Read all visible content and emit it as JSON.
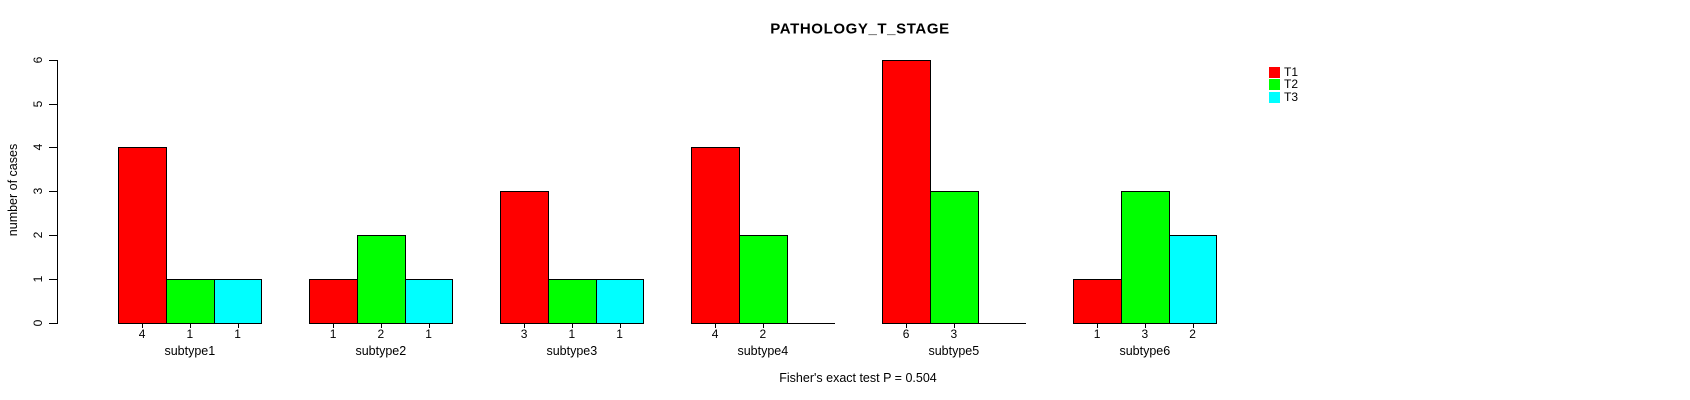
{
  "chart_data": {
    "type": "bar",
    "title": "PATHOLOGY_T_STAGE",
    "ylabel": "number of cases",
    "xlabel": "",
    "footnote": "Fisher's exact test P = 0.504",
    "categories": [
      "subtype1",
      "subtype2",
      "subtype3",
      "subtype4",
      "subtype5",
      "subtype6"
    ],
    "series": [
      {
        "name": "T1",
        "color": "#ff0000",
        "values": [
          4,
          1,
          3,
          4,
          6,
          1
        ]
      },
      {
        "name": "T2",
        "color": "#00ff00",
        "values": [
          1,
          2,
          1,
          2,
          3,
          3
        ]
      },
      {
        "name": "T3",
        "color": "#00ffff",
        "values": [
          1,
          1,
          1,
          0,
          0,
          2
        ]
      }
    ],
    "bar_value_labels": [
      [
        "4",
        "1",
        "1"
      ],
      [
        "1",
        "2",
        "1"
      ],
      [
        "3",
        "1",
        "1"
      ],
      [
        "4",
        "2",
        ""
      ],
      [
        "6",
        "3",
        ""
      ],
      [
        "1",
        "3",
        "2"
      ]
    ],
    "ylim": [
      0,
      6
    ],
    "yticks": [
      "0",
      "1",
      "2",
      "3",
      "4",
      "5",
      "6"
    ],
    "grid": false,
    "legend_position": "top-right",
    "legend_entries": [
      "T1",
      "T2",
      "T3"
    ]
  }
}
